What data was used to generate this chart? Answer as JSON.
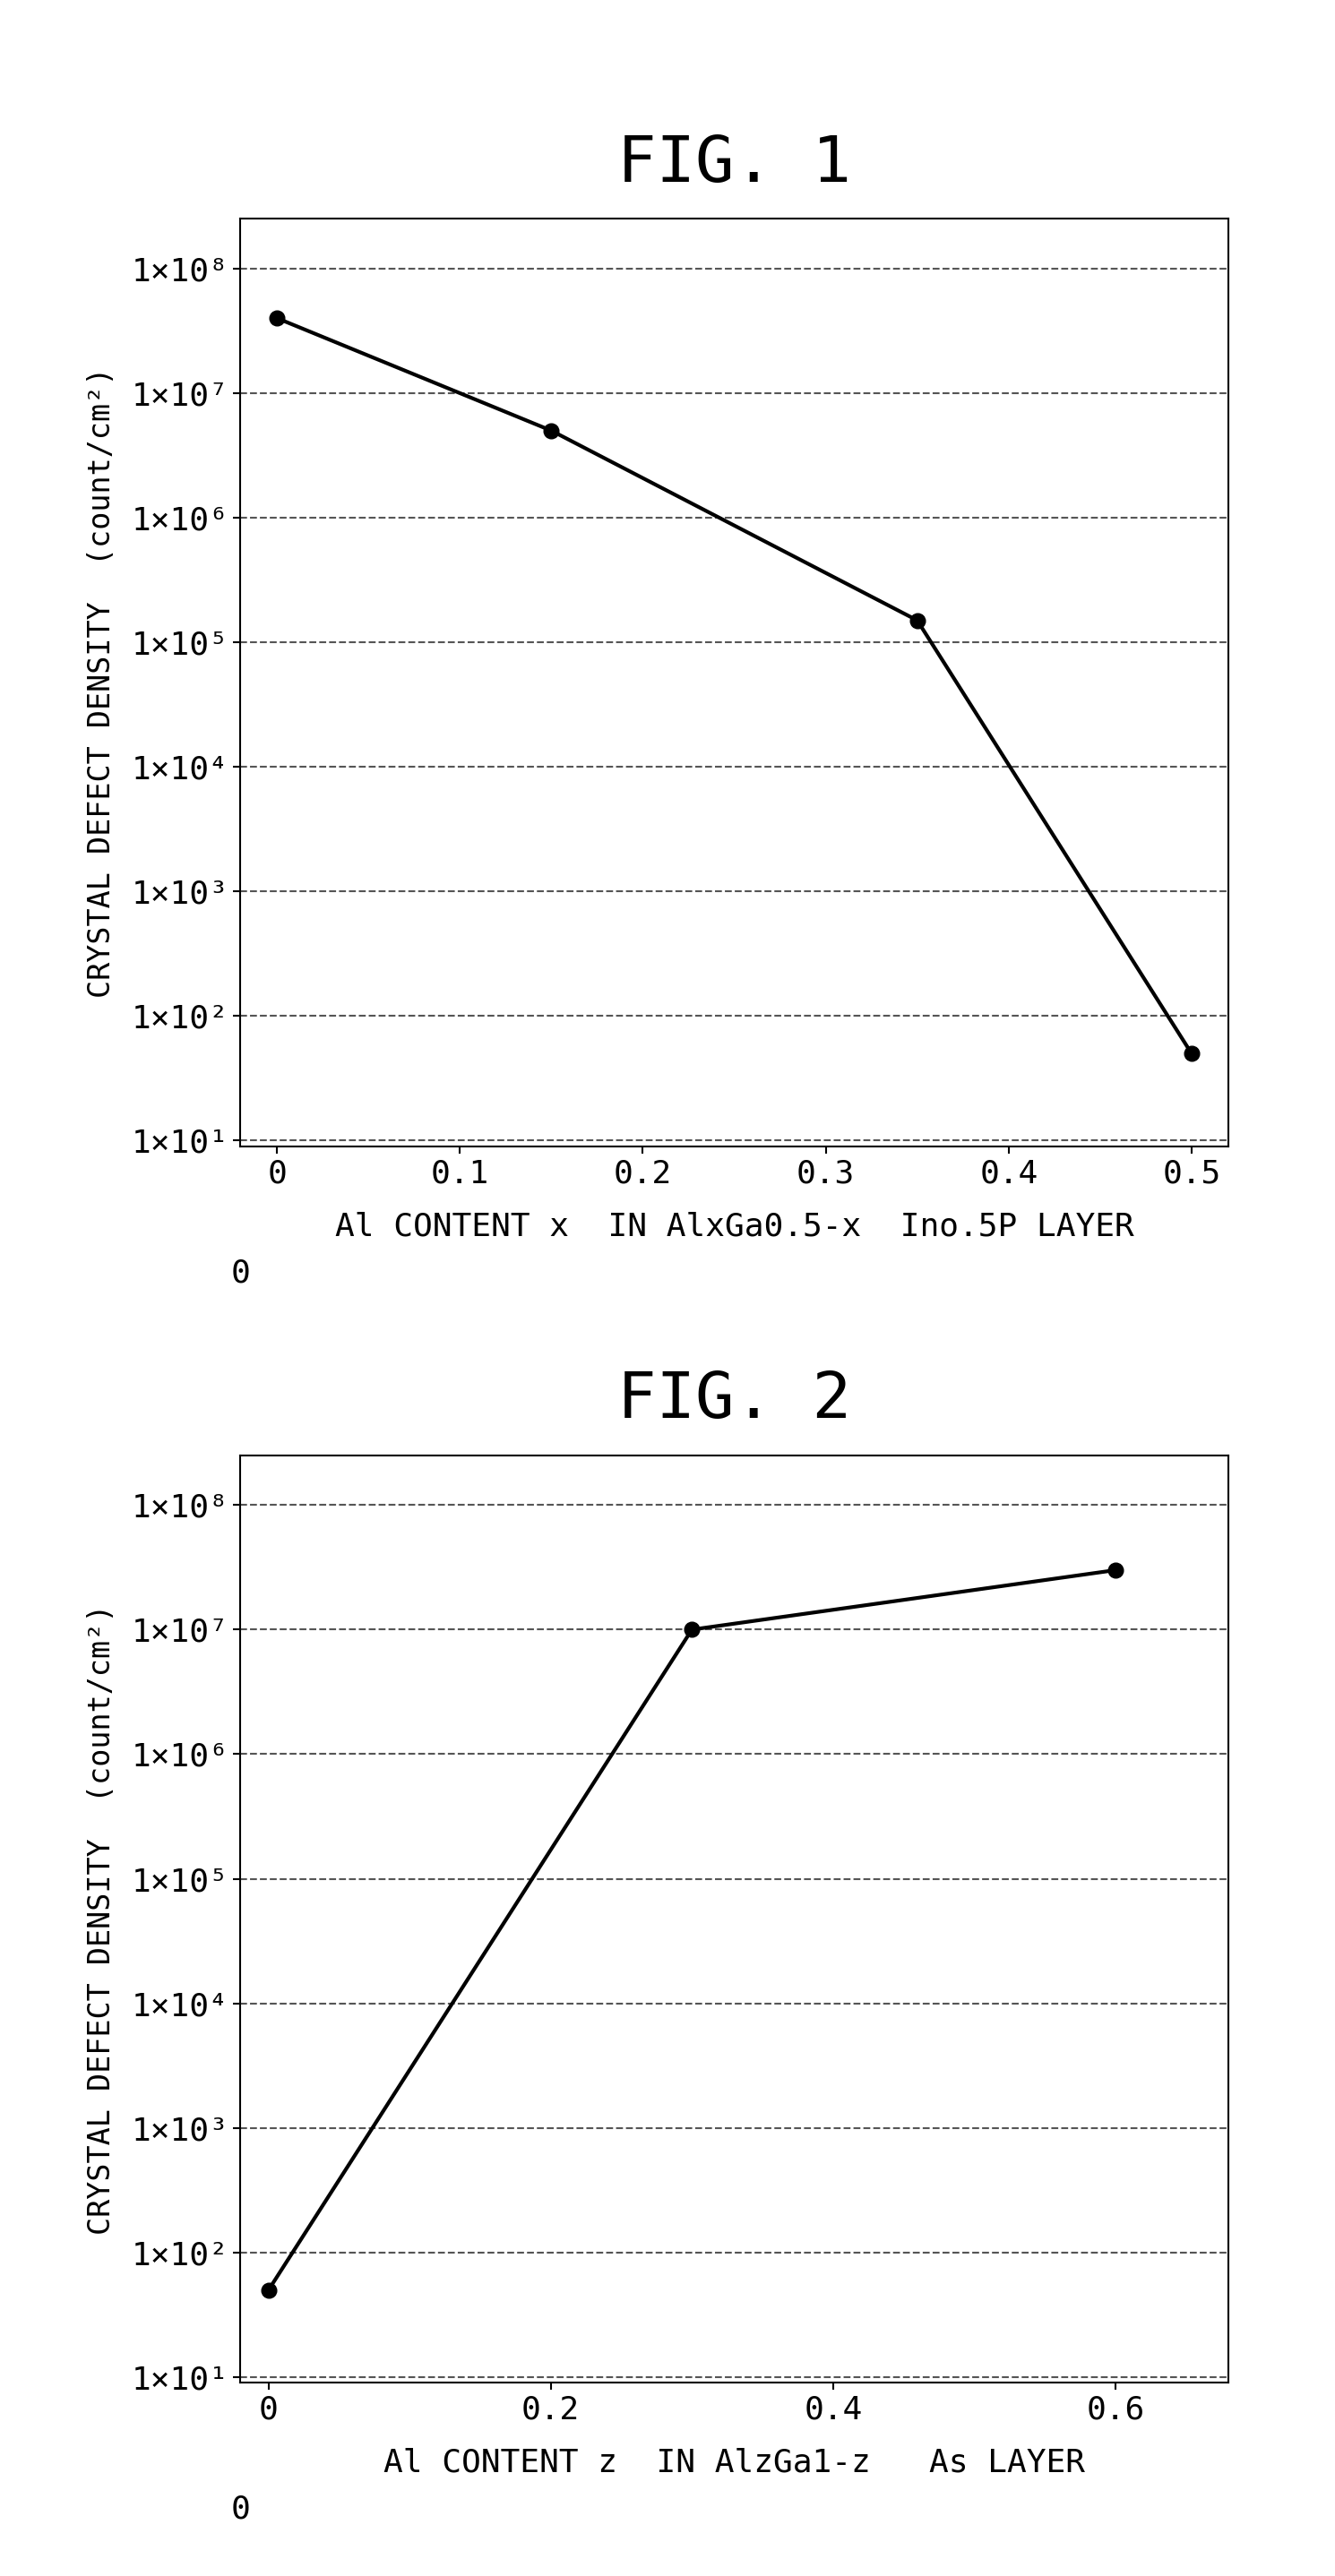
{
  "fig1": {
    "title": "FIG. 1",
    "x": [
      0,
      0.15,
      0.35,
      0.5
    ],
    "y": [
      40000000.0,
      5000000.0,
      150000.0,
      50
    ],
    "xlabel": "Al CONTENT x  IN AlxGa0.5-x  Ino.5P LAYER",
    "ylabel": "CRYSTAL DEFECT DENSITY  (count/cm²)",
    "xlim": [
      -0.02,
      0.52
    ],
    "xticks": [
      0,
      0.1,
      0.2,
      0.3,
      0.4,
      0.5
    ],
    "xtick_labels": [
      "0",
      "0.1",
      "0.2",
      "0.3",
      "0.4",
      "0.5"
    ],
    "ylog_min": 10,
    "ylog_max": 100000000.0,
    "yticks": [
      10,
      100,
      1000,
      10000,
      100000,
      1000000,
      10000000,
      100000000
    ],
    "ytick_labels": [
      "1×10¹",
      "1×10²",
      "1×10³",
      "1×10⁴",
      "1×10⁵",
      "1×10⁶",
      "1×10⁷",
      "1×10⁸"
    ]
  },
  "fig2": {
    "title": "FIG. 2",
    "x": [
      0,
      0.3,
      0.6
    ],
    "y": [
      50,
      10000000.0,
      30000000.0
    ],
    "xlabel": "Al CONTENT z  IN AlzGa1-z   As LAYER",
    "ylabel": "CRYSTAL DEFECT DENSITY  (count/cm²)",
    "xlim": [
      -0.02,
      0.68
    ],
    "xticks": [
      0,
      0.2,
      0.4,
      0.6
    ],
    "xtick_labels": [
      "0",
      "0.2",
      "0.4",
      "0.6"
    ],
    "ylog_min": 10,
    "ylog_max": 100000000.0,
    "yticks": [
      10,
      100,
      1000,
      10000,
      100000,
      1000000,
      10000000,
      100000000
    ],
    "ytick_labels": [
      "1×10¹",
      "1×10²",
      "1×10³",
      "1×10⁴",
      "1×10⁵",
      "1×10⁶",
      "1×10⁷",
      "1×10⁸"
    ]
  },
  "background_color": "#ffffff",
  "line_color": "#000000",
  "marker": "o",
  "marker_size": 12,
  "line_width": 3.0,
  "grid_color": "#555555",
  "grid_style": "--",
  "title_fontsize": 52,
  "label_fontsize": 26,
  "tick_fontsize": 26,
  "ylabel_fontsize": 24
}
